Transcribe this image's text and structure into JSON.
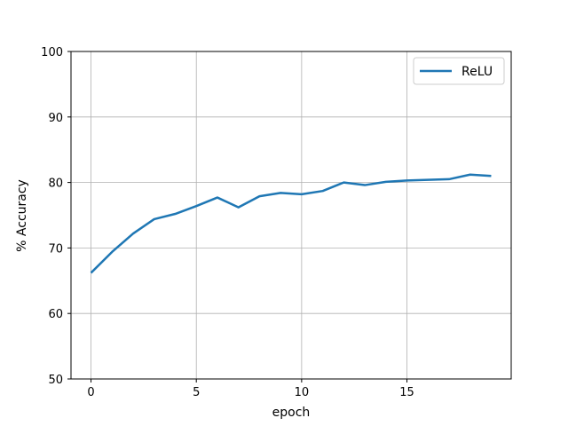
{
  "chart_data": {
    "type": "line",
    "title": "",
    "xlabel": "epoch",
    "ylabel": "% Accuracy",
    "xlim": [
      -0.95,
      19.95
    ],
    "ylim": [
      50,
      100
    ],
    "xticks": [
      0,
      5,
      10,
      15
    ],
    "yticks": [
      50,
      60,
      70,
      80,
      90,
      100
    ],
    "grid": true,
    "legend_position": "upper right",
    "series": [
      {
        "name": "ReLU",
        "color": "#1f77b4",
        "x": [
          0,
          1,
          2,
          3,
          4,
          5,
          6,
          7,
          8,
          9,
          10,
          11,
          12,
          13,
          14,
          15,
          16,
          17,
          18,
          19
        ],
        "y": [
          66.2,
          69.4,
          72.2,
          74.4,
          75.2,
          76.4,
          77.7,
          76.2,
          77.9,
          78.4,
          78.2,
          78.7,
          80.0,
          79.6,
          80.1,
          80.3,
          80.4,
          80.5,
          81.2,
          81.0
        ]
      }
    ]
  }
}
